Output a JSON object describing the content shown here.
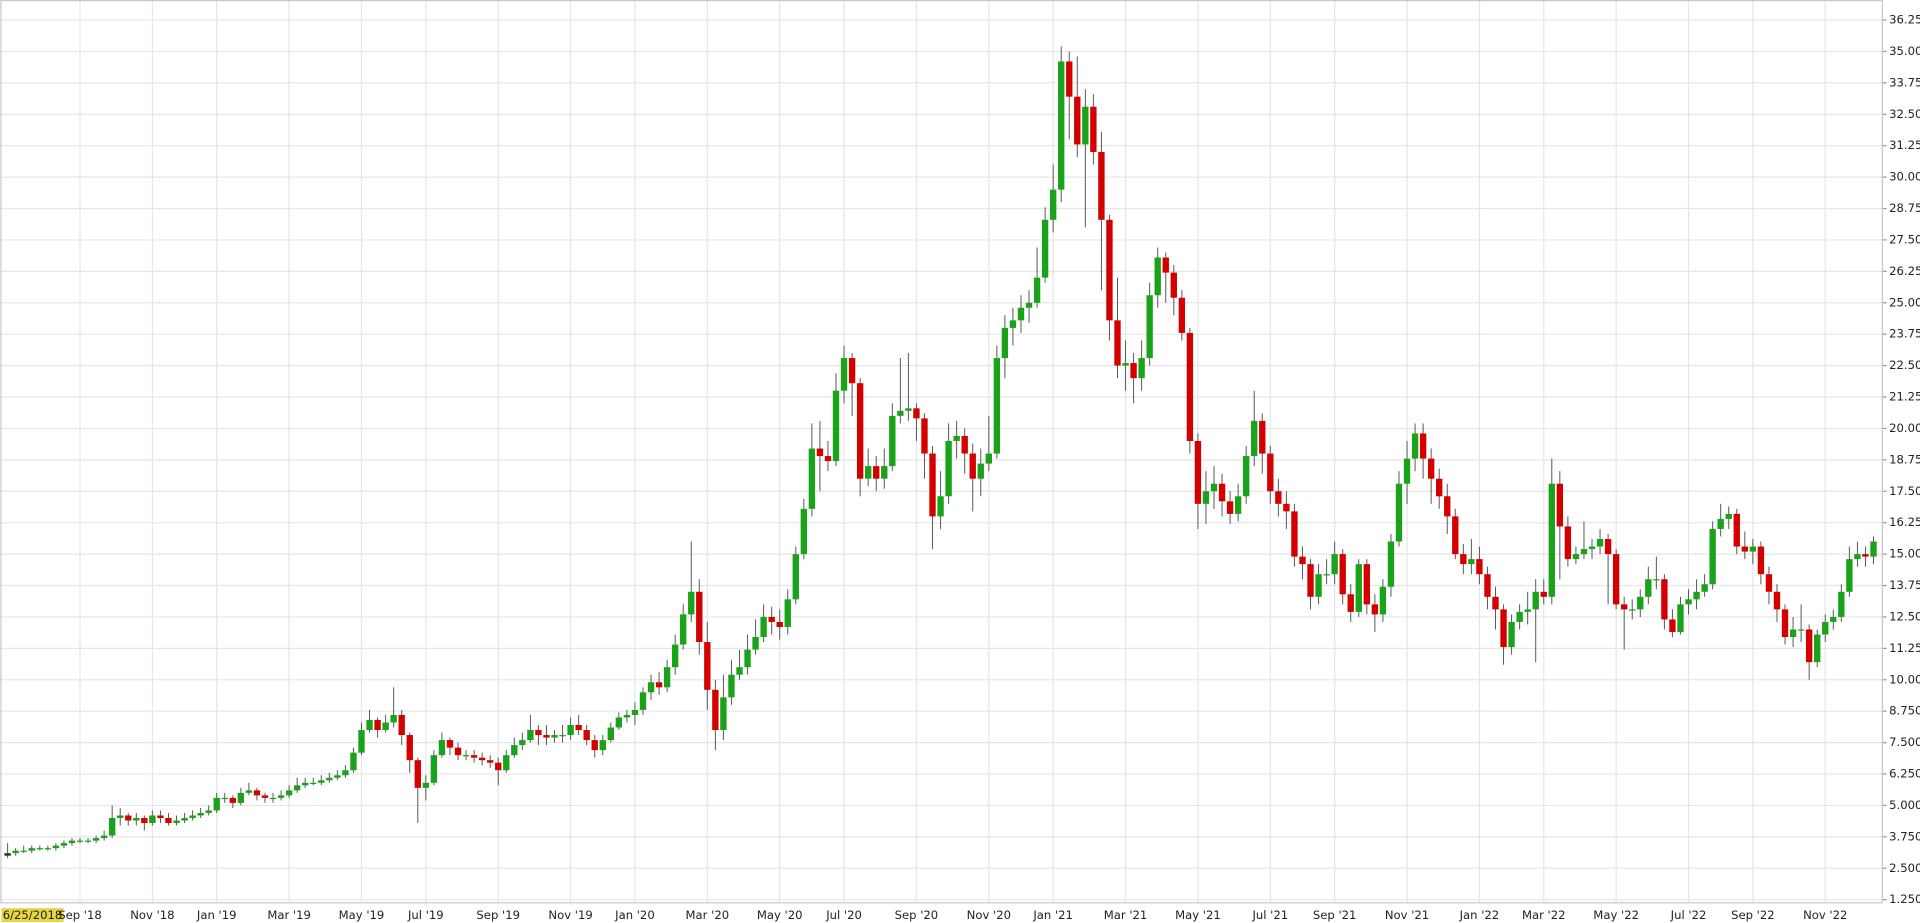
{
  "chart_data": {
    "type": "candlestick",
    "up_color": "#1aa31a",
    "down_color": "#d40000",
    "grid": true,
    "first_label_highlight": "#e8d640",
    "ylim": [
      1.15,
      36.9
    ],
    "yticks": [
      {
        "value": 1.25,
        "label": "1.2500"
      },
      {
        "value": 2.5,
        "label": "2.500"
      },
      {
        "value": 3.75,
        "label": "3.750"
      },
      {
        "value": 5,
        "label": "5.000"
      },
      {
        "value": 6.25,
        "label": "6.250"
      },
      {
        "value": 7.5,
        "label": "7.500"
      },
      {
        "value": 8.75,
        "label": "8.750"
      },
      {
        "value": 10,
        "label": "10.000"
      },
      {
        "value": 11.25,
        "label": "11.250"
      },
      {
        "value": 12.5,
        "label": "12.500"
      },
      {
        "value": 13.75,
        "label": "13.750"
      },
      {
        "value": 15,
        "label": "15.000"
      },
      {
        "value": 16.25,
        "label": "16.250"
      },
      {
        "value": 17.5,
        "label": "17.500"
      },
      {
        "value": 18.75,
        "label": "18.750"
      },
      {
        "value": 20,
        "label": "20.00"
      },
      21.25,
      {
        "value": 22.5,
        "label": "22.50"
      },
      23.75,
      {
        "value": 25,
        "label": "25.00"
      },
      26.25,
      {
        "value": 27.5,
        "label": "27.50"
      },
      28.75,
      {
        "value": 30,
        "label": "30.00"
      },
      31.25,
      {
        "value": 32.5,
        "label": "32.50"
      },
      33.75,
      {
        "value": 35,
        "label": "35.00"
      },
      36.25
    ],
    "categories": [
      "6/25/2018",
      null,
      null,
      null,
      null,
      null,
      null,
      null,
      null,
      "Sep '18",
      null,
      null,
      null,
      null,
      null,
      null,
      null,
      null,
      "Nov '18",
      null,
      null,
      null,
      null,
      null,
      null,
      null,
      "Jan '19",
      null,
      null,
      null,
      null,
      null,
      null,
      null,
      null,
      "Mar '19",
      null,
      null,
      null,
      null,
      null,
      null,
      null,
      null,
      "May '19",
      null,
      null,
      null,
      null,
      null,
      null,
      null,
      "Jul '19",
      null,
      null,
      null,
      null,
      null,
      null,
      null,
      null,
      "Sep '19",
      null,
      null,
      null,
      null,
      null,
      null,
      null,
      null,
      "Nov '19",
      null,
      null,
      null,
      null,
      null,
      null,
      null,
      "Jan '20",
      null,
      null,
      null,
      null,
      null,
      null,
      null,
      null,
      "Mar '20",
      null,
      null,
      null,
      null,
      null,
      null,
      null,
      null,
      "May '20",
      null,
      null,
      null,
      null,
      null,
      null,
      null,
      "Jul '20",
      null,
      null,
      null,
      null,
      null,
      null,
      null,
      null,
      "Sep '20",
      null,
      null,
      null,
      null,
      null,
      null,
      null,
      null,
      "Nov '20",
      null,
      null,
      null,
      null,
      null,
      null,
      null,
      "Jan '21",
      null,
      null,
      null,
      null,
      null,
      null,
      null,
      null,
      "Mar '21",
      null,
      null,
      null,
      null,
      null,
      null,
      null,
      null,
      "May '21",
      null,
      null,
      null,
      null,
      null,
      null,
      null,
      null,
      "Jul '21",
      null,
      null,
      null,
      null,
      null,
      null,
      null,
      "Sep '21",
      null,
      null,
      null,
      null,
      null,
      null,
      null,
      null,
      "Nov '21",
      null,
      null,
      null,
      null,
      null,
      null,
      null,
      null,
      "Jan '22",
      null,
      null,
      null,
      null,
      null,
      null,
      null,
      "Mar '22",
      null,
      null,
      null,
      null,
      null,
      null,
      null,
      null,
      "May '22",
      null,
      null,
      null,
      null,
      null,
      null,
      null,
      null,
      "Jul '22",
      null,
      null,
      null,
      null,
      null,
      null,
      null,
      "Sep '22",
      null,
      null,
      null,
      null,
      null,
      null,
      null,
      null,
      "Nov '22",
      null,
      null,
      null,
      null,
      null,
      null
    ],
    "open": [
      3.0,
      3.1,
      3.2,
      3.2,
      3.3,
      3.3,
      3.3,
      3.4,
      3.5,
      3.6,
      3.6,
      3.6,
      3.7,
      3.8,
      4.5,
      4.6,
      4.4,
      4.5,
      4.3,
      4.6,
      4.5,
      4.3,
      4.4,
      4.5,
      4.6,
      4.7,
      4.8,
      5.3,
      5.3,
      5.1,
      5.5,
      5.6,
      5.4,
      5.3,
      5.3,
      5.4,
      5.6,
      5.8,
      5.9,
      5.9,
      6.0,
      6.1,
      6.2,
      6.4,
      7.1,
      8.0,
      8.4,
      8.0,
      8.3,
      8.6,
      7.8,
      6.8,
      5.7,
      5.9,
      7.0,
      7.6,
      7.3,
      7.0,
      7.0,
      6.9,
      6.8,
      6.7,
      6.4,
      7.0,
      7.4,
      7.6,
      8.0,
      7.8,
      7.7,
      7.8,
      7.8,
      8.2,
      8.0,
      7.6,
      7.2,
      7.6,
      8.1,
      8.5,
      8.6,
      8.8,
      9.5,
      9.9,
      9.7,
      10.5,
      11.4,
      12.6,
      13.5,
      11.5,
      9.6,
      8.0,
      9.3,
      10.2,
      10.5,
      11.2,
      11.7,
      12.5,
      12.3,
      12.1,
      13.2,
      15.0,
      16.8,
      19.2,
      18.9,
      18.7,
      21.5,
      22.8,
      21.8,
      18.0,
      18.5,
      18.0,
      18.5,
      20.5,
      20.7,
      20.8,
      20.4,
      19.0,
      16.5,
      17.3,
      19.5,
      19.7,
      19.0,
      18.0,
      18.6,
      19.0,
      22.8,
      24.0,
      24.3,
      24.8,
      25.0,
      26.0,
      28.3,
      29.5,
      34.6,
      33.2,
      31.3,
      32.8,
      31.0,
      28.3,
      24.3,
      22.5,
      22.6,
      22.0,
      22.8,
      25.3,
      26.8,
      26.2,
      25.2,
      23.8,
      19.5,
      17.0,
      17.5,
      17.8,
      17.1,
      16.6,
      17.3,
      18.9,
      20.3,
      19.0,
      17.5,
      17.0,
      16.7,
      14.9,
      14.6,
      13.3,
      14.2,
      14.2,
      15.0,
      13.4,
      12.7,
      14.6,
      13.0,
      12.6,
      13.7,
      15.5,
      17.8,
      18.8,
      19.8,
      18.8,
      18.0,
      17.3,
      16.5,
      15.0,
      14.6,
      14.8,
      14.2,
      13.3,
      12.8,
      11.3,
      12.3,
      12.7,
      12.8,
      13.5,
      13.3,
      17.8,
      16.1,
      14.8,
      15.0,
      15.2,
      15.3,
      15.6,
      15.0,
      13.0,
      12.8,
      12.8,
      13.3,
      14.0,
      14.0,
      12.4,
      11.9,
      13.0,
      13.2,
      13.5,
      13.8,
      16.0,
      16.4,
      16.6,
      15.3,
      15.1,
      15.3,
      14.2,
      13.5,
      12.8,
      11.7,
      12.0,
      12.0,
      10.7,
      11.8,
      12.3,
      12.5,
      13.5,
      14.8,
      15.0,
      14.9
    ],
    "high": [
      3.5,
      3.3,
      3.4,
      3.4,
      3.4,
      3.4,
      3.5,
      3.6,
      3.7,
      3.7,
      3.7,
      3.8,
      4.0,
      5.0,
      4.9,
      4.7,
      4.7,
      4.6,
      4.8,
      4.8,
      4.7,
      4.6,
      4.7,
      4.8,
      4.9,
      5.0,
      5.5,
      5.5,
      5.4,
      5.7,
      5.9,
      5.7,
      5.5,
      5.5,
      5.6,
      5.8,
      6.1,
      6.1,
      6.1,
      6.2,
      6.3,
      6.4,
      6.6,
      7.3,
      8.3,
      8.8,
      8.5,
      8.6,
      9.7,
      8.8,
      7.9,
      6.9,
      6.2,
      7.2,
      7.9,
      7.7,
      7.5,
      7.2,
      7.2,
      7.1,
      7.0,
      6.9,
      7.2,
      7.7,
      7.9,
      8.6,
      8.2,
      8.2,
      8.0,
      8.2,
      8.5,
      8.6,
      8.2,
      7.8,
      7.8,
      8.3,
      8.7,
      8.8,
      9.1,
      9.7,
      10.2,
      10.3,
      10.8,
      11.8,
      13.0,
      15.5,
      14.0,
      12.3,
      10.0,
      10.2,
      10.8,
      11.2,
      11.8,
      12.4,
      13.0,
      12.9,
      12.8,
      13.6,
      15.3,
      17.2,
      20.2,
      20.3,
      19.5,
      22.2,
      23.3,
      23.0,
      22.0,
      19.2,
      18.9,
      19.2,
      21.0,
      22.8,
      23.0,
      21.0,
      20.6,
      19.3,
      18.3,
      20.2,
      20.3,
      20.0,
      19.4,
      19.2,
      20.5,
      23.3,
      24.5,
      24.8,
      25.3,
      25.5,
      27.2,
      28.8,
      30.5,
      35.2,
      35.0,
      34.8,
      33.5,
      33.3,
      31.8,
      28.5,
      26.0,
      23.5,
      23.0,
      23.5,
      25.8,
      27.2,
      27.0,
      26.5,
      25.5,
      24.0,
      19.8,
      18.3,
      18.5,
      18.2,
      17.5,
      17.8,
      19.3,
      21.5,
      20.6,
      19.3,
      18.0,
      17.5,
      17.0,
      15.3,
      14.8,
      14.6,
      14.8,
      15.5,
      15.2,
      13.8,
      14.8,
      14.8,
      13.4,
      14.0,
      15.8,
      18.3,
      19.5,
      20.2,
      20.2,
      19.2,
      18.4,
      17.8,
      16.8,
      15.4,
      15.6,
      15.3,
      14.5,
      13.7,
      13.0,
      12.6,
      13.0,
      13.5,
      14.0,
      14.0,
      18.8,
      18.3,
      16.5,
      15.3,
      16.3,
      15.6,
      16.0,
      15.8,
      15.2,
      13.3,
      13.2,
      13.6,
      14.5,
      14.9,
      14.2,
      12.8,
      13.3,
      13.6,
      14.0,
      14.2,
      16.3,
      17.0,
      16.9,
      16.8,
      15.9,
      15.6,
      15.5,
      14.5,
      13.8,
      13.0,
      12.5,
      13.0,
      12.2,
      12.0,
      12.6,
      12.8,
      13.8,
      15.3,
      15.5,
      15.3,
      15.7
    ],
    "low": [
      2.9,
      3.0,
      3.1,
      3.1,
      3.2,
      3.2,
      3.2,
      3.3,
      3.4,
      3.5,
      3.5,
      3.5,
      3.6,
      3.7,
      4.2,
      4.2,
      4.2,
      4.0,
      4.2,
      4.3,
      4.2,
      4.2,
      4.3,
      4.4,
      4.5,
      4.6,
      4.7,
      5.1,
      4.9,
      5.0,
      5.4,
      5.2,
      5.1,
      5.1,
      5.2,
      5.3,
      5.5,
      5.7,
      5.8,
      5.8,
      5.9,
      6.0,
      6.1,
      6.3,
      7.0,
      7.9,
      7.7,
      7.9,
      8.1,
      7.4,
      6.3,
      4.3,
      5.2,
      5.8,
      6.9,
      7.0,
      6.8,
      6.8,
      6.7,
      6.6,
      6.5,
      5.8,
      6.3,
      6.9,
      7.2,
      7.5,
      7.4,
      7.4,
      7.5,
      7.5,
      7.6,
      7.8,
      7.4,
      6.9,
      7.0,
      7.5,
      8.0,
      8.3,
      8.2,
      8.6,
      9.2,
      9.4,
      9.5,
      10.2,
      11.2,
      12.3,
      11.0,
      8.8,
      7.2,
      7.6,
      9.0,
      10.0,
      10.2,
      11.0,
      11.5,
      11.8,
      11.6,
      11.8,
      13.0,
      14.8,
      16.5,
      17.5,
      18.3,
      18.5,
      21.0,
      20.5,
      17.3,
      17.7,
      17.5,
      17.6,
      18.3,
      20.2,
      20.3,
      19.5,
      18.0,
      15.2,
      16.0,
      17.0,
      18.8,
      18.2,
      16.7,
      17.3,
      18.3,
      18.8,
      22.0,
      23.3,
      23.8,
      24.2,
      24.8,
      25.8,
      27.8,
      29.0,
      31.5,
      30.8,
      28.0,
      30.5,
      25.5,
      23.5,
      22.0,
      21.5,
      21.0,
      21.5,
      22.5,
      24.8,
      25.0,
      24.5,
      23.5,
      19.0,
      16.0,
      16.2,
      16.8,
      16.5,
      16.2,
      16.3,
      17.0,
      18.5,
      18.2,
      17.0,
      16.5,
      16.0,
      14.5,
      14.0,
      12.8,
      13.0,
      13.8,
      13.8,
      13.0,
      12.3,
      12.5,
      12.6,
      11.9,
      12.3,
      13.3,
      15.3,
      17.0,
      18.3,
      18.0,
      17.0,
      16.8,
      15.8,
      14.8,
      14.2,
      14.2,
      13.8,
      12.8,
      12.0,
      10.6,
      11.0,
      12.0,
      12.2,
      10.7,
      13.0,
      13.0,
      14.0,
      14.5,
      14.6,
      14.8,
      14.8,
      15.0,
      13.0,
      12.8,
      11.2,
      12.4,
      12.5,
      13.0,
      13.6,
      12.0,
      11.7,
      11.8,
      12.6,
      12.8,
      13.3,
      13.6,
      15.7,
      16.0,
      15.0,
      14.8,
      14.6,
      13.8,
      13.0,
      12.3,
      11.4,
      11.3,
      11.5,
      10.0,
      10.5,
      11.5,
      12.0,
      12.3,
      13.3,
      14.5,
      14.5,
      14.6
    ],
    "close": [
      3.1,
      3.2,
      3.2,
      3.3,
      3.3,
      3.3,
      3.4,
      3.5,
      3.6,
      3.6,
      3.6,
      3.7,
      3.8,
      4.5,
      4.6,
      4.4,
      4.5,
      4.3,
      4.6,
      4.5,
      4.3,
      4.4,
      4.5,
      4.6,
      4.7,
      4.8,
      5.3,
      5.3,
      5.1,
      5.5,
      5.6,
      5.4,
      5.3,
      5.3,
      5.4,
      5.6,
      5.8,
      5.9,
      5.9,
      6.0,
      6.1,
      6.2,
      6.4,
      7.1,
      8.0,
      8.4,
      8.0,
      8.3,
      8.6,
      7.8,
      6.8,
      5.7,
      5.9,
      7.0,
      7.6,
      7.3,
      7.0,
      7.0,
      6.9,
      6.8,
      6.7,
      6.4,
      7.0,
      7.4,
      7.6,
      8.0,
      7.8,
      7.7,
      7.8,
      7.8,
      8.2,
      8.0,
      7.6,
      7.2,
      7.6,
      8.1,
      8.5,
      8.6,
      8.8,
      9.5,
      9.9,
      9.7,
      10.5,
      11.4,
      12.6,
      13.5,
      11.5,
      9.6,
      8.0,
      9.3,
      10.2,
      10.5,
      11.2,
      11.7,
      12.5,
      12.3,
      12.1,
      13.2,
      15.0,
      16.8,
      19.2,
      18.9,
      18.7,
      21.5,
      22.8,
      21.8,
      18.0,
      18.5,
      18.0,
      18.5,
      20.5,
      20.7,
      20.8,
      20.4,
      19.0,
      16.5,
      17.3,
      19.5,
      19.7,
      19.0,
      18.0,
      18.6,
      19.0,
      22.8,
      24.0,
      24.3,
      24.8,
      25.0,
      26.0,
      28.3,
      29.5,
      34.6,
      33.2,
      31.3,
      32.8,
      31.0,
      28.3,
      24.3,
      22.5,
      22.6,
      22.0,
      22.8,
      25.3,
      26.8,
      26.2,
      25.2,
      23.8,
      19.5,
      17.0,
      17.5,
      17.8,
      17.1,
      16.6,
      17.3,
      18.9,
      20.3,
      19.0,
      17.5,
      17.0,
      16.7,
      14.9,
      14.6,
      13.3,
      14.2,
      14.2,
      15.0,
      13.4,
      12.7,
      14.6,
      13.0,
      12.6,
      13.7,
      15.5,
      17.8,
      18.8,
      19.8,
      18.8,
      18.0,
      17.3,
      16.5,
      15.0,
      14.6,
      14.8,
      14.2,
      13.3,
      12.8,
      11.3,
      12.3,
      12.7,
      12.8,
      13.5,
      13.3,
      17.8,
      16.1,
      14.8,
      15.0,
      15.2,
      15.3,
      15.6,
      15.0,
      13.0,
      12.8,
      12.8,
      13.3,
      14.0,
      14.0,
      12.4,
      11.9,
      13.0,
      13.2,
      13.5,
      13.8,
      16.0,
      16.4,
      16.6,
      15.3,
      15.1,
      15.3,
      14.2,
      13.5,
      12.8,
      11.7,
      12.0,
      12.0,
      10.7,
      11.8,
      12.3,
      12.5,
      13.5,
      14.8,
      15.0,
      14.9,
      15.5
    ]
  }
}
